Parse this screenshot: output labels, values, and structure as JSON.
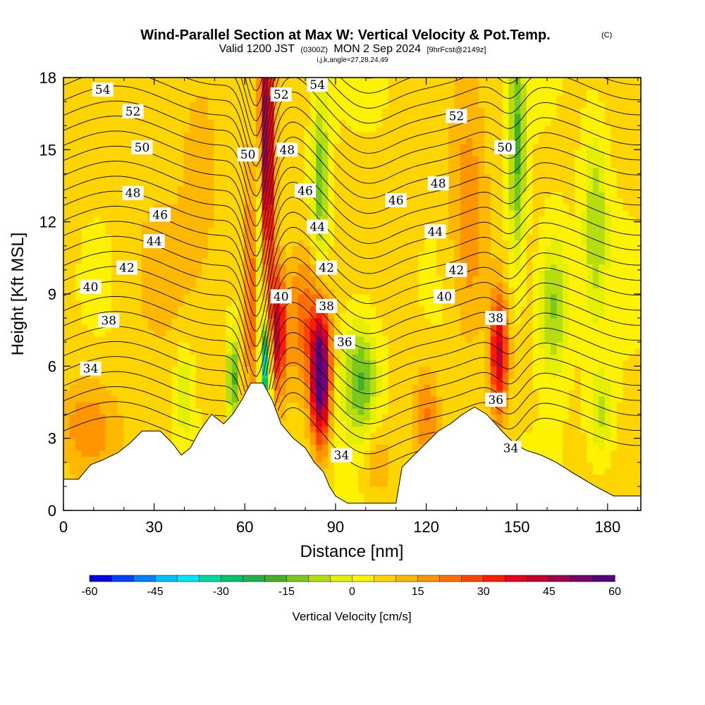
{
  "title": {
    "main": "Wind-Parallel Section at Max W: Vertical Velocity & Pot.Temp.",
    "main_note": "(C)",
    "valid_prefix": "Valid 1200 JST",
    "valid_small": "(0300Z)",
    "valid_date": "MON 2 Sep 2024",
    "valid_fcst": "[9hrFcst@2149z]",
    "indices": "i,j,k,angle=27,28,24,49"
  },
  "chart_data": {
    "type": "heatmap",
    "xlabel": "Distance [nm]",
    "ylabel": "Height [Kft MSL]",
    "xlim": [
      0,
      191
    ],
    "ylim": [
      0,
      18
    ],
    "xticks": [
      "0",
      "30",
      "60",
      "90",
      "120",
      "150",
      "180"
    ],
    "yticks": [
      "0",
      "3",
      "6",
      "9",
      "12",
      "15",
      "18"
    ],
    "colorbar": {
      "label": "Vertical Velocity [cm/s]",
      "range": [
        -60,
        60
      ],
      "tick_labels": [
        "-60",
        "-45",
        "-30",
        "-15",
        "0",
        "15",
        "30",
        "45",
        "60"
      ],
      "colors": [
        "#0000e6",
        "#0040ff",
        "#0080ff",
        "#00bfff",
        "#00e5ff",
        "#00d9a0",
        "#00c46a",
        "#22b24c",
        "#43b028",
        "#7ac91c",
        "#b5dd10",
        "#e5f000",
        "#fff200",
        "#ffd500",
        "#ffb800",
        "#ff9600",
        "#ff7000",
        "#ff4400",
        "#ff1a00",
        "#e6001a",
        "#c40030",
        "#a00050",
        "#7a006e",
        "#55007f"
      ]
    },
    "terrain_kft": [
      [
        0,
        1.3
      ],
      [
        5,
        1.3
      ],
      [
        7,
        1.6
      ],
      [
        9,
        1.9
      ],
      [
        13,
        2.1
      ],
      [
        18,
        2.4
      ],
      [
        22,
        2.8
      ],
      [
        26,
        3.3
      ],
      [
        32,
        3.3
      ],
      [
        36,
        2.8
      ],
      [
        39,
        2.3
      ],
      [
        42,
        2.6
      ],
      [
        45,
        3.3
      ],
      [
        49,
        4.0
      ],
      [
        53,
        3.6
      ],
      [
        56,
        4.0
      ],
      [
        59,
        4.6
      ],
      [
        62,
        5.3
      ],
      [
        66,
        5.3
      ],
      [
        69,
        4.6
      ],
      [
        72,
        3.6
      ],
      [
        76,
        3.0
      ],
      [
        80,
        2.6
      ],
      [
        83,
        2.0
      ],
      [
        86,
        1.6
      ],
      [
        88,
        1.0
      ],
      [
        90,
        0.6
      ],
      [
        94,
        0.3
      ],
      [
        110,
        0.3
      ],
      [
        112,
        1.8
      ],
      [
        116,
        2.3
      ],
      [
        120,
        2.8
      ],
      [
        124,
        3.3
      ],
      [
        128,
        3.6
      ],
      [
        132,
        4.0
      ],
      [
        136,
        4.3
      ],
      [
        140,
        4.0
      ],
      [
        145,
        3.3
      ],
      [
        149,
        2.8
      ],
      [
        153,
        2.5
      ],
      [
        158,
        2.3
      ],
      [
        163,
        2.0
      ],
      [
        168,
        1.6
      ],
      [
        172,
        1.3
      ],
      [
        176,
        1.0
      ],
      [
        182,
        0.6
      ],
      [
        191,
        0.6
      ]
    ],
    "w_features": [
      {
        "x": 67,
        "y": 14.5,
        "wx": 2.5,
        "wy": 6.0,
        "v": 52
      },
      {
        "x": 71,
        "y": 7.5,
        "wx": 2.5,
        "wy": 2.5,
        "v": 35
      },
      {
        "x": 63,
        "y": 9.5,
        "wx": 3.0,
        "wy": 5.0,
        "v": 28
      },
      {
        "x": 65,
        "y": 11.0,
        "wx": 2.2,
        "wy": 5.0,
        "v": -40
      },
      {
        "x": 67,
        "y": 6.0,
        "wx": 1.5,
        "wy": 1.8,
        "v": -45
      },
      {
        "x": 56,
        "y": 5.5,
        "wx": 1.8,
        "wy": 2.0,
        "v": -25
      },
      {
        "x": 85,
        "y": 5.5,
        "wx": 3.0,
        "wy": 2.5,
        "v": 58
      },
      {
        "x": 80,
        "y": 8.0,
        "wx": 7.0,
        "wy": 3.0,
        "v": 18
      },
      {
        "x": 144,
        "y": 6.5,
        "wx": 3.0,
        "wy": 2.5,
        "v": 35
      },
      {
        "x": 134,
        "y": 12.0,
        "wx": 6.0,
        "wy": 5.0,
        "v": 14
      },
      {
        "x": 98,
        "y": 5.5,
        "wx": 6.0,
        "wy": 2.5,
        "v": -22
      },
      {
        "x": 104,
        "y": 2.0,
        "wx": 5.0,
        "wy": 1.5,
        "v": 10
      },
      {
        "x": 85,
        "y": 13.5,
        "wx": 3.0,
        "wy": 4.0,
        "v": -20
      },
      {
        "x": 150,
        "y": 15.0,
        "wx": 3.0,
        "wy": 5.0,
        "v": -22
      },
      {
        "x": 162,
        "y": 8.5,
        "wx": 5.0,
        "wy": 3.0,
        "v": -18
      },
      {
        "x": 176,
        "y": 12.0,
        "wx": 4.0,
        "wy": 4.0,
        "v": -15
      },
      {
        "x": 8,
        "y": 3.5,
        "wx": 10.0,
        "wy": 2.0,
        "v": 12
      },
      {
        "x": 30,
        "y": 10.0,
        "wx": 10.0,
        "wy": 4.0,
        "v": 6
      },
      {
        "x": 45,
        "y": 15.0,
        "wx": 6.0,
        "wy": 4.0,
        "v": 8
      },
      {
        "x": 40,
        "y": 5.0,
        "wx": 3.0,
        "wy": 2.0,
        "v": -12
      },
      {
        "x": 120,
        "y": 4.0,
        "wx": 4.0,
        "wy": 2.0,
        "v": 14
      },
      {
        "x": 178,
        "y": 4.0,
        "wx": 4.0,
        "wy": 2.0,
        "v": -12
      }
    ],
    "theta_contours": {
      "from": 31,
      "to": 55,
      "step": 0.5,
      "labeled_levels": [
        34,
        36,
        38,
        40,
        42,
        44,
        46,
        48,
        50,
        52,
        54
      ]
    },
    "contour_labels": [
      {
        "text": "54",
        "x": 13,
        "y": 17.5
      },
      {
        "text": "52",
        "x": 23,
        "y": 16.6
      },
      {
        "text": "50",
        "x": 26,
        "y": 15.1
      },
      {
        "text": "48",
        "x": 23,
        "y": 13.2
      },
      {
        "text": "46",
        "x": 32,
        "y": 12.3
      },
      {
        "text": "44",
        "x": 30,
        "y": 11.2
      },
      {
        "text": "42",
        "x": 21,
        "y": 10.1
      },
      {
        "text": "40",
        "x": 9,
        "y": 9.3
      },
      {
        "text": "38",
        "x": 15,
        "y": 7.9
      },
      {
        "text": "34",
        "x": 9,
        "y": 5.9
      },
      {
        "text": "52",
        "x": 72,
        "y": 17.3
      },
      {
        "text": "54",
        "x": 84,
        "y": 17.7
      },
      {
        "text": "50",
        "x": 61,
        "y": 14.8
      },
      {
        "text": "48",
        "x": 74,
        "y": 15.0
      },
      {
        "text": "46",
        "x": 80,
        "y": 13.3
      },
      {
        "text": "44",
        "x": 84,
        "y": 11.8
      },
      {
        "text": "42",
        "x": 87,
        "y": 10.1
      },
      {
        "text": "40",
        "x": 72,
        "y": 8.9
      },
      {
        "text": "38",
        "x": 87,
        "y": 8.5
      },
      {
        "text": "36",
        "x": 93,
        "y": 7.0
      },
      {
        "text": "34",
        "x": 92,
        "y": 2.3
      },
      {
        "text": "52",
        "x": 130,
        "y": 16.4
      },
      {
        "text": "50",
        "x": 146,
        "y": 15.1
      },
      {
        "text": "48",
        "x": 124,
        "y": 13.6
      },
      {
        "text": "46",
        "x": 110,
        "y": 12.9
      },
      {
        "text": "44",
        "x": 123,
        "y": 11.6
      },
      {
        "text": "42",
        "x": 130,
        "y": 10.0
      },
      {
        "text": "40",
        "x": 126,
        "y": 8.9
      },
      {
        "text": "38",
        "x": 143,
        "y": 8.0
      },
      {
        "text": "36",
        "x": 143,
        "y": 4.6
      },
      {
        "text": "34",
        "x": 148,
        "y": 2.6
      }
    ],
    "grid": false,
    "legend": "bottom"
  }
}
